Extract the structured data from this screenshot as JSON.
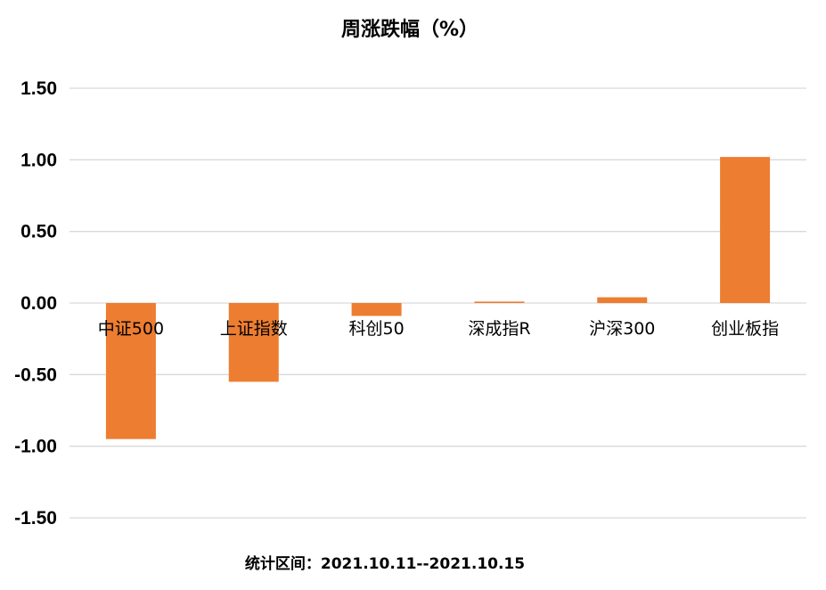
{
  "chart_data": {
    "type": "bar",
    "title": "周涨跌幅（%）",
    "categories": [
      "中证500",
      "上证指数",
      "科创50",
      "深成指R",
      "沪深300",
      "创业板指"
    ],
    "values": [
      -0.95,
      -0.55,
      -0.09,
      0.01,
      0.04,
      1.02
    ],
    "ylim": [
      -1.5,
      1.5
    ],
    "yticks": [
      "1.50",
      "1.00",
      "0.50",
      "0.00",
      "-0.50",
      "-1.00",
      "-1.50"
    ],
    "grid": true,
    "bar_color": "#ED7D31"
  },
  "footer": "统计区间：2021.10.11--2021.10.15"
}
